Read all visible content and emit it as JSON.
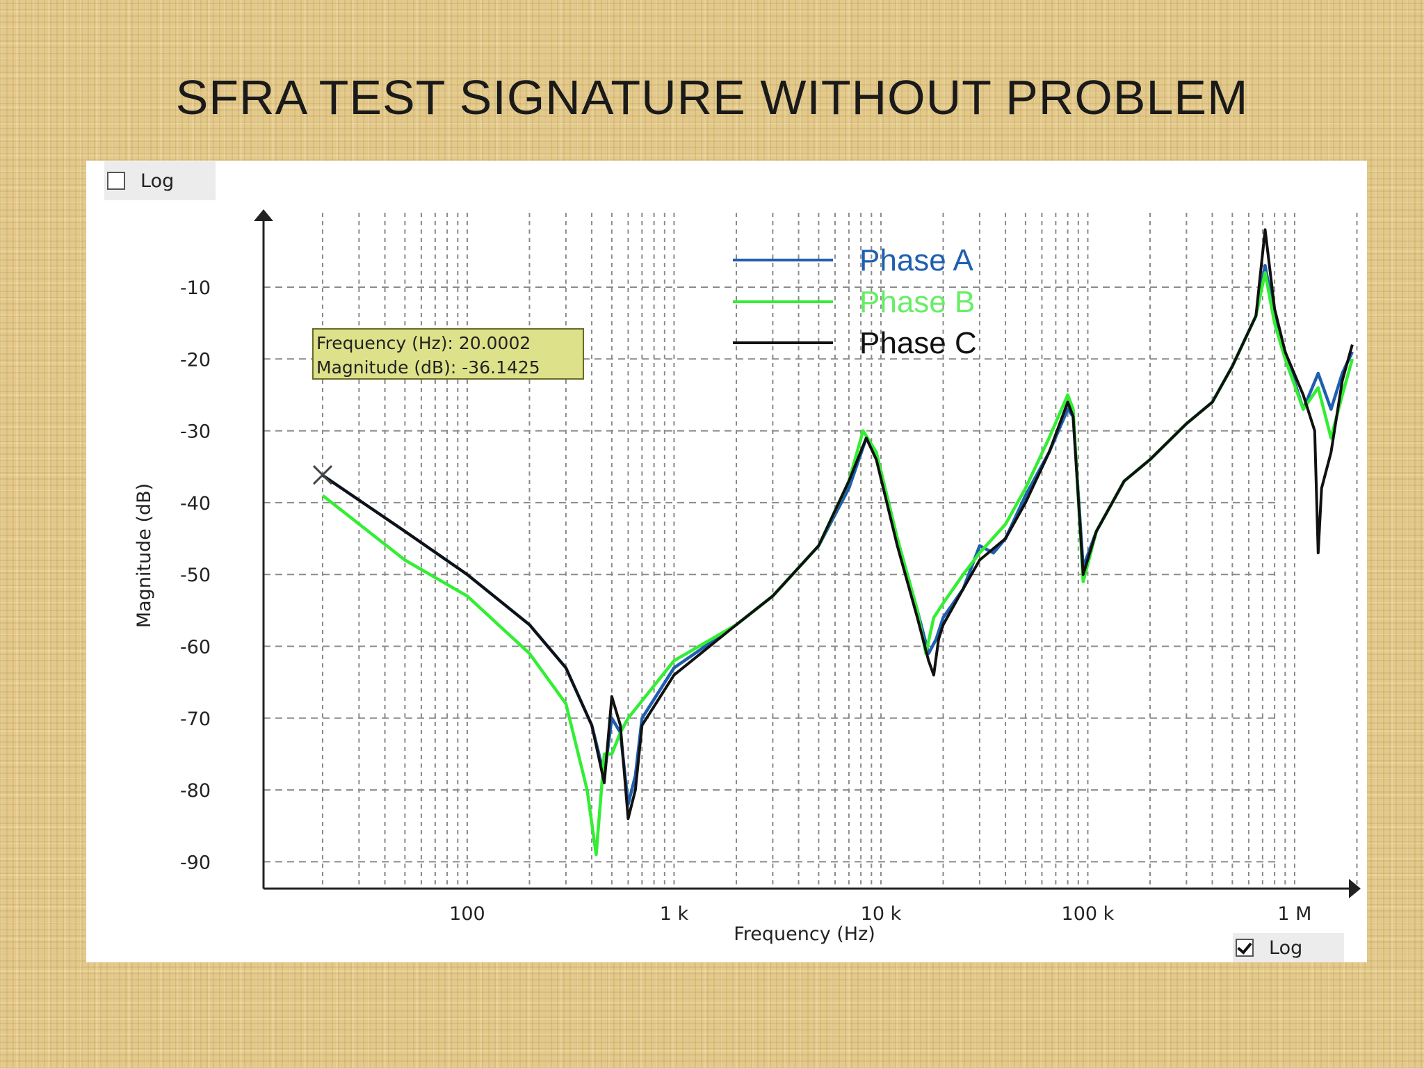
{
  "slide": {
    "title": "SFRA TEST SIGNATURE WITHOUT PROBLEM"
  },
  "controls": {
    "log_y": {
      "label": "Log",
      "checked": false
    },
    "log_x": {
      "label": "Log",
      "checked": true
    }
  },
  "tooltip": {
    "line1": "Frequency (Hz): 20.0002",
    "line2": "Magnitude (dB): -36.1425",
    "marker": {
      "x": 20.0002,
      "y": -36.1425
    }
  },
  "chart_data": {
    "type": "line",
    "title": "",
    "xlabel": "Frequency (Hz)",
    "ylabel": "Magnitude (dB)",
    "x_scale": "log",
    "xlim": [
      20,
      2000000
    ],
    "ylim": [
      -94,
      -2
    ],
    "x_ticks": [
      {
        "value": 100,
        "label": "100"
      },
      {
        "value": 1000,
        "label": "1 k"
      },
      {
        "value": 10000,
        "label": "10 k"
      },
      {
        "value": 100000,
        "label": "100 k"
      },
      {
        "value": 1000000,
        "label": "1 M"
      }
    ],
    "y_ticks": [
      -10,
      -20,
      -30,
      -40,
      -50,
      -60,
      -70,
      -80,
      -90
    ],
    "grid": true,
    "legend_position": "top-center",
    "series": [
      {
        "name": "Phase A",
        "color": "#1f5fb0",
        "points": [
          [
            20,
            -36.2
          ],
          [
            50,
            -44
          ],
          [
            100,
            -50
          ],
          [
            200,
            -57
          ],
          [
            300,
            -63
          ],
          [
            400,
            -71
          ],
          [
            460,
            -78
          ],
          [
            500,
            -70
          ],
          [
            550,
            -72
          ],
          [
            600,
            -82
          ],
          [
            650,
            -78
          ],
          [
            700,
            -70
          ],
          [
            1000,
            -63
          ],
          [
            2000,
            -57
          ],
          [
            3000,
            -53
          ],
          [
            5000,
            -46
          ],
          [
            7000,
            -38
          ],
          [
            8500,
            -31
          ],
          [
            9500,
            -33
          ],
          [
            12000,
            -45
          ],
          [
            15000,
            -55
          ],
          [
            17000,
            -61
          ],
          [
            18500,
            -59
          ],
          [
            20000,
            -56
          ],
          [
            25000,
            -52
          ],
          [
            30000,
            -46
          ],
          [
            35000,
            -47
          ],
          [
            40000,
            -45
          ],
          [
            50000,
            -39
          ],
          [
            65000,
            -33
          ],
          [
            80000,
            -27
          ],
          [
            85000,
            -28
          ],
          [
            95000,
            -49
          ],
          [
            110000,
            -44
          ],
          [
            150000,
            -37
          ],
          [
            200000,
            -34
          ],
          [
            300000,
            -29
          ],
          [
            400000,
            -26
          ],
          [
            500000,
            -21
          ],
          [
            650000,
            -14
          ],
          [
            720000,
            -7
          ],
          [
            800000,
            -14
          ],
          [
            900000,
            -19
          ],
          [
            1100000,
            -27
          ],
          [
            1300000,
            -22
          ],
          [
            1500000,
            -27
          ],
          [
            1700000,
            -22
          ],
          [
            1900000,
            -19
          ]
        ]
      },
      {
        "name": "Phase B",
        "color": "#33ee33",
        "points": [
          [
            20,
            -39
          ],
          [
            50,
            -48
          ],
          [
            100,
            -53
          ],
          [
            200,
            -61
          ],
          [
            300,
            -68
          ],
          [
            380,
            -80
          ],
          [
            420,
            -89
          ],
          [
            460,
            -75
          ],
          [
            500,
            -75
          ],
          [
            550,
            -72
          ],
          [
            600,
            -70
          ],
          [
            1000,
            -62
          ],
          [
            2000,
            -57
          ],
          [
            3000,
            -53
          ],
          [
            5000,
            -46
          ],
          [
            7000,
            -37
          ],
          [
            8200,
            -30
          ],
          [
            9500,
            -33
          ],
          [
            12000,
            -45
          ],
          [
            15000,
            -55
          ],
          [
            16500,
            -61
          ],
          [
            18000,
            -56
          ],
          [
            20000,
            -54
          ],
          [
            25000,
            -50
          ],
          [
            30000,
            -47
          ],
          [
            40000,
            -43
          ],
          [
            50000,
            -38
          ],
          [
            65000,
            -31
          ],
          [
            80000,
            -25
          ],
          [
            85000,
            -27
          ],
          [
            95000,
            -51
          ],
          [
            110000,
            -44
          ],
          [
            150000,
            -37
          ],
          [
            200000,
            -34
          ],
          [
            300000,
            -29
          ],
          [
            400000,
            -26
          ],
          [
            500000,
            -21
          ],
          [
            650000,
            -14
          ],
          [
            720000,
            -8
          ],
          [
            800000,
            -15
          ],
          [
            900000,
            -20
          ],
          [
            1100000,
            -27
          ],
          [
            1300000,
            -24
          ],
          [
            1500000,
            -31
          ],
          [
            1700000,
            -25
          ],
          [
            1900000,
            -20
          ]
        ]
      },
      {
        "name": "Phase C",
        "color": "#111111",
        "points": [
          [
            20,
            -36.2
          ],
          [
            50,
            -44
          ],
          [
            100,
            -50
          ],
          [
            200,
            -57
          ],
          [
            300,
            -63
          ],
          [
            400,
            -71
          ],
          [
            460,
            -79
          ],
          [
            500,
            -67
          ],
          [
            550,
            -71
          ],
          [
            600,
            -84
          ],
          [
            650,
            -80
          ],
          [
            700,
            -71
          ],
          [
            1000,
            -64
          ],
          [
            2000,
            -57
          ],
          [
            3000,
            -53
          ],
          [
            5000,
            -46
          ],
          [
            7000,
            -37
          ],
          [
            8500,
            -31
          ],
          [
            9500,
            -34
          ],
          [
            12000,
            -46
          ],
          [
            15000,
            -56
          ],
          [
            17000,
            -62
          ],
          [
            18000,
            -64
          ],
          [
            19000,
            -59
          ],
          [
            20000,
            -57
          ],
          [
            25000,
            -52
          ],
          [
            30000,
            -48
          ],
          [
            40000,
            -45
          ],
          [
            50000,
            -40
          ],
          [
            65000,
            -33
          ],
          [
            80000,
            -26
          ],
          [
            85000,
            -28
          ],
          [
            95000,
            -50
          ],
          [
            110000,
            -44
          ],
          [
            150000,
            -37
          ],
          [
            200000,
            -34
          ],
          [
            300000,
            -29
          ],
          [
            400000,
            -26
          ],
          [
            500000,
            -21
          ],
          [
            650000,
            -14
          ],
          [
            720000,
            -2
          ],
          [
            800000,
            -13
          ],
          [
            900000,
            -19
          ],
          [
            1100000,
            -25
          ],
          [
            1250000,
            -30
          ],
          [
            1300000,
            -47
          ],
          [
            1350000,
            -38
          ],
          [
            1500000,
            -33
          ],
          [
            1700000,
            -23
          ],
          [
            1900000,
            -18
          ]
        ]
      }
    ]
  }
}
